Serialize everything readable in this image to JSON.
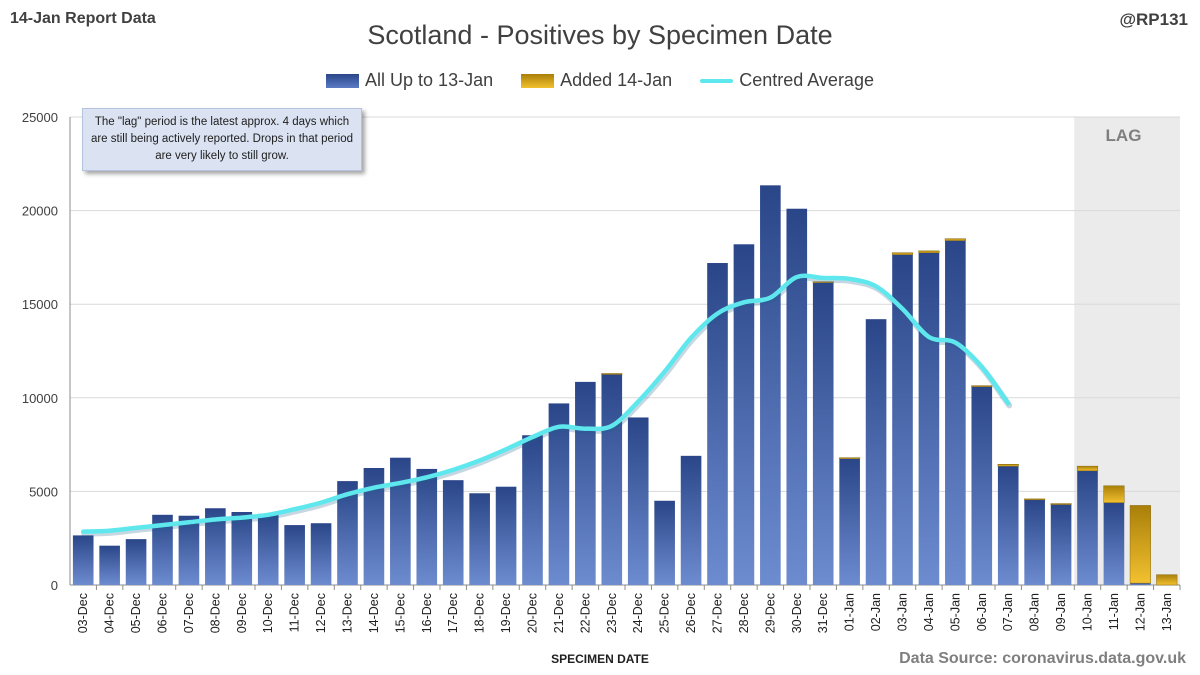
{
  "header": {
    "report_label": "14-Jan Report Data",
    "handle": "@RP131"
  },
  "note": "The \"lag\" period is the latest approx. 4 days which are still being actively reported. Drops in that period are very likely to still grow.",
  "lag_label": "LAG",
  "source": "Data Source: coronavirus.data.gov.uk",
  "colors": {
    "bar_dark": "#2a4689",
    "bar_light": "#6d8ccf",
    "added_dark": "#a97f08",
    "added_light": "#f2c130",
    "line": "#5ee8ee",
    "lag_band": "#ebebeb",
    "grid": "#d9d9d9"
  },
  "chart_data": {
    "type": "bar",
    "stacked": true,
    "title": "Scotland - Positives by Specimen Date",
    "xlabel": "SPECIMEN DATE",
    "ylabel": "",
    "ylim": [
      0,
      25000
    ],
    "yticks": [
      "0",
      "5000",
      "10000",
      "15000",
      "20000",
      "25000"
    ],
    "grid": true,
    "legend_position": "top",
    "categories": [
      "03-Dec",
      "04-Dec",
      "05-Dec",
      "06-Dec",
      "07-Dec",
      "08-Dec",
      "09-Dec",
      "10-Dec",
      "11-Dec",
      "12-Dec",
      "13-Dec",
      "14-Dec",
      "15-Dec",
      "16-Dec",
      "17-Dec",
      "18-Dec",
      "19-Dec",
      "20-Dec",
      "21-Dec",
      "22-Dec",
      "23-Dec",
      "24-Dec",
      "25-Dec",
      "26-Dec",
      "27-Dec",
      "28-Dec",
      "29-Dec",
      "30-Dec",
      "31-Dec",
      "01-Jan",
      "02-Jan",
      "03-Jan",
      "04-Jan",
      "05-Jan",
      "06-Jan",
      "07-Jan",
      "08-Jan",
      "09-Jan",
      "10-Jan",
      "11-Jan",
      "12-Jan",
      "13-Jan"
    ],
    "series": [
      {
        "name": "All Up to 13-Jan",
        "values": [
          2650,
          2100,
          2450,
          3750,
          3700,
          4100,
          3900,
          3800,
          3200,
          3300,
          5550,
          6250,
          6800,
          6200,
          5600,
          4900,
          5250,
          8000,
          9700,
          10850,
          11250,
          8950,
          4500,
          6900,
          17200,
          18200,
          21350,
          20100,
          16150,
          6750,
          14200,
          17650,
          17750,
          18400,
          10600,
          6350,
          4550,
          4300,
          6100,
          4400,
          100,
          0
        ]
      },
      {
        "name": "Added 14-Jan",
        "values": [
          0,
          0,
          0,
          0,
          0,
          0,
          0,
          0,
          0,
          0,
          0,
          0,
          0,
          0,
          0,
          0,
          0,
          0,
          0,
          0,
          50,
          0,
          0,
          0,
          0,
          0,
          0,
          0,
          50,
          50,
          0,
          100,
          100,
          100,
          50,
          100,
          50,
          50,
          250,
          900,
          4150,
          550
        ]
      },
      {
        "name": "Centred Average",
        "type": "line",
        "values": [
          2850,
          2900,
          3050,
          3200,
          3350,
          3500,
          3600,
          3750,
          4050,
          4400,
          4850,
          5200,
          5450,
          5750,
          6150,
          6650,
          7250,
          7900,
          8450,
          8350,
          8500,
          9800,
          11400,
          13200,
          14500,
          15100,
          15350,
          16450,
          16400,
          16350,
          15950,
          14750,
          13250,
          12950,
          11650,
          9700,
          null,
          null,
          null,
          null,
          null,
          null
        ]
      }
    ],
    "lag_categories": [
      "10-Jan",
      "11-Jan",
      "12-Jan",
      "13-Jan"
    ]
  }
}
